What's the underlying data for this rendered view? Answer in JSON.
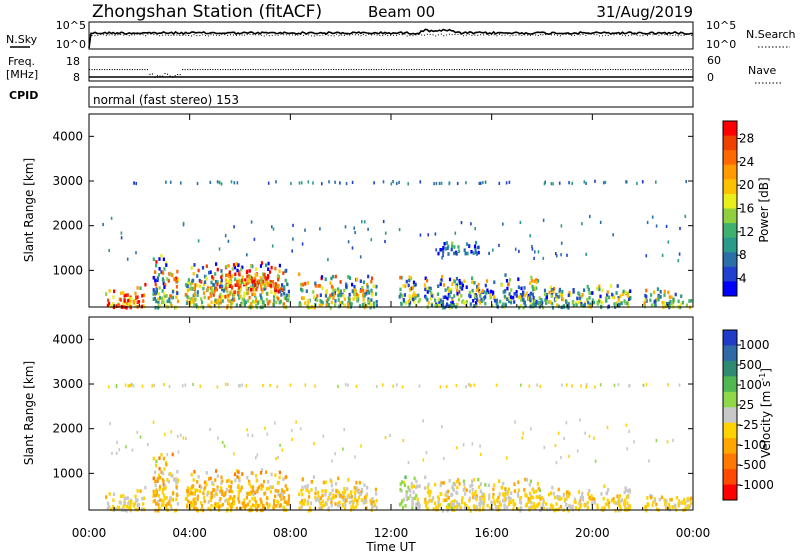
{
  "header": {
    "station": "Zhongshan Station (fitACF)",
    "beam": "Beam 00",
    "date": "31/Aug/2019"
  },
  "noise_panel": {
    "left_label": "N.Sky",
    "right_label": "N.Search",
    "left_ticks": [
      "10^5",
      "10^0"
    ],
    "right_ticks": [
      "10^5",
      "10^0"
    ]
  },
  "freq_panel": {
    "left_label_1": "Freq.",
    "left_label_2": "[MHz]",
    "right_label": "Nave",
    "left_ticks": [
      "18",
      "8"
    ],
    "right_ticks": [
      "60",
      "0"
    ]
  },
  "cpid_panel": {
    "label": "CPID",
    "text": "normal (fast stereo) 153"
  },
  "power_colorbar": {
    "title": "Power [dB]",
    "ticks": [
      "28",
      "24",
      "20",
      "16",
      "12",
      "8",
      "4"
    ],
    "colors": [
      "#ff0000",
      "#f04000",
      "#ff6a00",
      "#ff9a00",
      "#ffc000",
      "#e8ef1a",
      "#90d040",
      "#3fb070",
      "#2a9a8a",
      "#2a6fa8",
      "#2040d0",
      "#0000ff"
    ]
  },
  "velocity_colorbar": {
    "title": "Velocity [m s^-1]",
    "ticks": [
      "1000",
      "500",
      "100",
      "25",
      "-25",
      "-100",
      "-500",
      "-1000"
    ],
    "colors": [
      "#1f3cc8",
      "#2f6aa8",
      "#2e8a70",
      "#4fb850",
      "#8fd848",
      "#c8c8c8",
      "#ffd200",
      "#ffa600",
      "#ff7800",
      "#ff4a00",
      "#ff0000"
    ]
  },
  "x_axis": {
    "label": "Time UT",
    "ticks": [
      "00:00",
      "04:00",
      "08:00",
      "12:00",
      "16:00",
      "20:00",
      "00:00"
    ]
  },
  "chart_data": [
    {
      "type": "heatmap",
      "name": "power",
      "ylabel": "Slant Range [km]",
      "xlabel": "",
      "x_range_hours": [
        0,
        24
      ],
      "ylim": [
        180,
        4500
      ],
      "y_ticks": [
        "1000",
        "2000",
        "3000",
        "4000"
      ],
      "colorbar_label": "Power [dB]",
      "colorbar_range": [
        0,
        30
      ],
      "regions": [
        {
          "t": [
            0.6,
            2.2
          ],
          "r": [
            200,
            750
          ],
          "v": 22
        },
        {
          "t": [
            2.5,
            3.5
          ],
          "r": [
            200,
            1500
          ],
          "v": 14
        },
        {
          "t": [
            3.8,
            8.0
          ],
          "r": [
            200,
            1300
          ],
          "v": 16
        },
        {
          "t": [
            5.3,
            7.5
          ],
          "r": [
            500,
            1200
          ],
          "v": 22
        },
        {
          "t": [
            8.3,
            11.4
          ],
          "r": [
            200,
            1000
          ],
          "v": 14
        },
        {
          "t": [
            12.3,
            13.1
          ],
          "r": [
            250,
            1100
          ],
          "v": 12
        },
        {
          "t": [
            13.8,
            15.5
          ],
          "r": [
            1400,
            1700
          ],
          "v": 6
        },
        {
          "t": [
            13.3,
            17.8
          ],
          "r": [
            200,
            1000
          ],
          "v": 10
        },
        {
          "t": [
            17.8,
            21.5
          ],
          "r": [
            200,
            800
          ],
          "v": 12
        },
        {
          "t": [
            22.0,
            23.9
          ],
          "r": [
            200,
            650
          ],
          "v": 12
        }
      ],
      "sparse_band_ranges_km": [
        3000,
        2000,
        1500
      ]
    },
    {
      "type": "heatmap",
      "name": "velocity",
      "ylabel": "Slant Range [km]",
      "xlabel": "Time UT",
      "x_range_hours": [
        0,
        24
      ],
      "ylim": [
        180,
        4500
      ],
      "y_ticks": [
        "1000",
        "2000",
        "3000",
        "4000"
      ],
      "colorbar_label": "Velocity [m s^-1]",
      "colorbar_range": [
        -1000,
        1000
      ],
      "regions": [
        {
          "t": [
            0.6,
            2.2
          ],
          "r": [
            200,
            750
          ],
          "v": -150
        },
        {
          "t": [
            2.5,
            3.5
          ],
          "r": [
            200,
            1600
          ],
          "v": -200
        },
        {
          "t": [
            3.8,
            8.0
          ],
          "r": [
            200,
            1200
          ],
          "v": -250
        },
        {
          "t": [
            8.3,
            11.4
          ],
          "r": [
            200,
            1000
          ],
          "v": -150
        },
        {
          "t": [
            12.3,
            13.1
          ],
          "r": [
            250,
            1100
          ],
          "v": 50
        },
        {
          "t": [
            13.3,
            17.8
          ],
          "r": [
            200,
            1000
          ],
          "v": -120
        },
        {
          "t": [
            14.2,
            15.0
          ],
          "r": [
            250,
            500
          ],
          "v": 0
        },
        {
          "t": [
            17.8,
            21.5
          ],
          "r": [
            200,
            800
          ],
          "v": -130
        },
        {
          "t": [
            22.0,
            23.9
          ],
          "r": [
            200,
            650
          ],
          "v": -150
        }
      ],
      "sparse_band_ranges_km": [
        3000,
        2000,
        1500
      ]
    }
  ]
}
